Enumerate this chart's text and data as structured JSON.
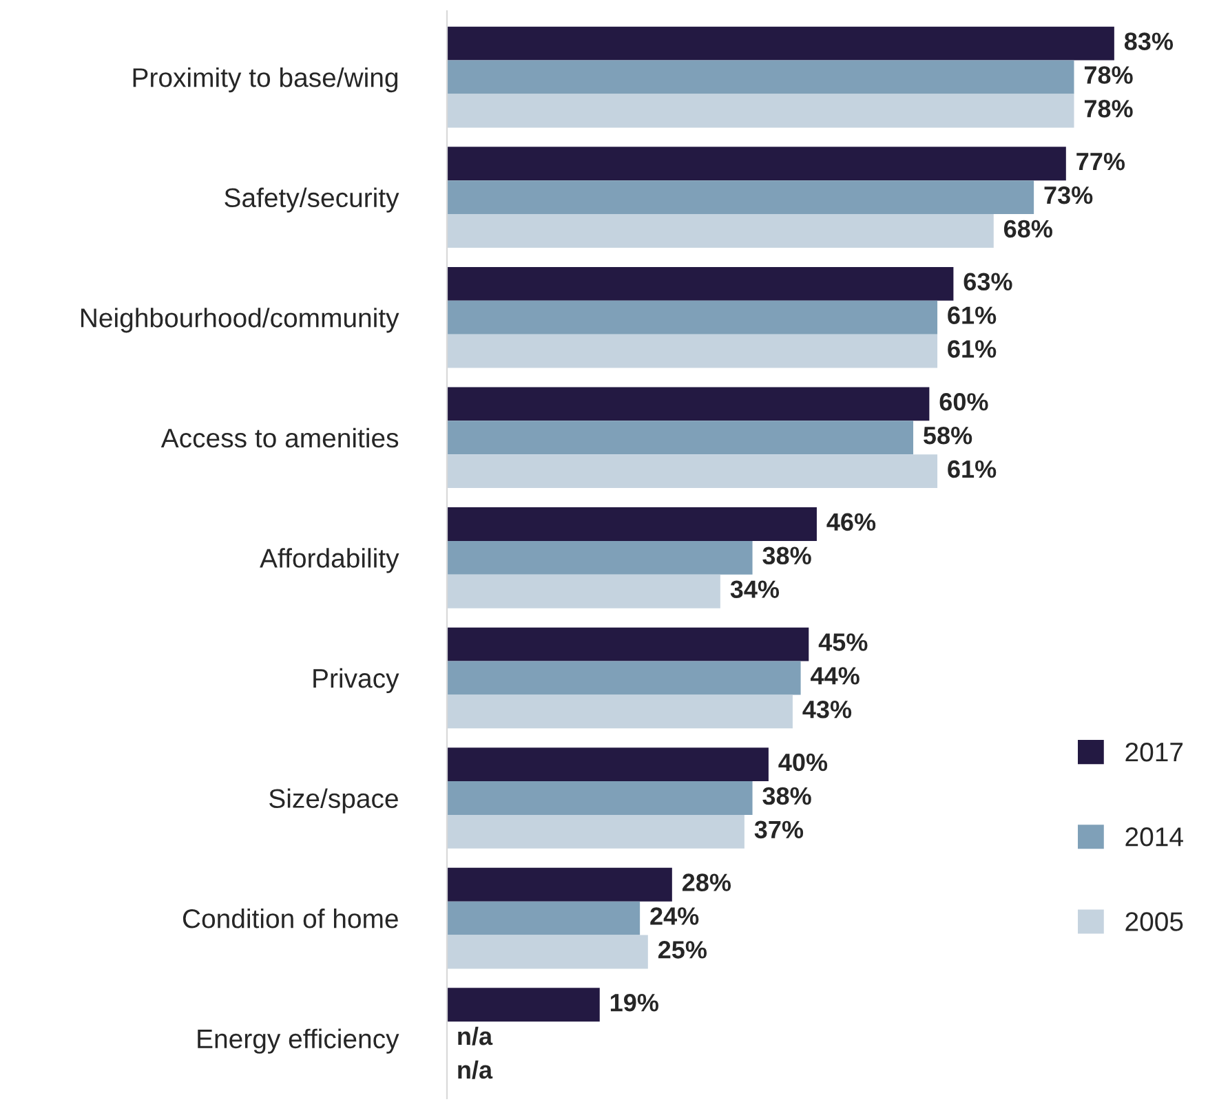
{
  "chart_data": {
    "type": "bar",
    "orientation": "horizontal",
    "categories": [
      "Proximity to base/wing",
      "Safety/security",
      "Neighbourhood/community",
      "Access to amenities",
      "Affordability",
      "Privacy",
      "Size/space",
      "Condition of home",
      "Energy efficiency"
    ],
    "series": [
      {
        "name": "2017",
        "color": "#231942",
        "values": [
          83,
          77,
          63,
          60,
          46,
          45,
          40,
          28,
          19
        ],
        "value_labels": [
          "83%",
          "77%",
          "63%",
          "60%",
          "46%",
          "45%",
          "40%",
          "28%",
          "19%"
        ]
      },
      {
        "name": "2014",
        "color": "#7fa0b8",
        "values": [
          78,
          73,
          61,
          58,
          38,
          44,
          38,
          24,
          null
        ],
        "value_labels": [
          "78%",
          "73%",
          "61%",
          "58%",
          "38%",
          "44%",
          "38%",
          "24%",
          "n/a"
        ]
      },
      {
        "name": "2005",
        "color": "#c5d3df",
        "values": [
          78,
          68,
          61,
          61,
          34,
          43,
          37,
          25,
          null
        ],
        "value_labels": [
          "78%",
          "68%",
          "61%",
          "61%",
          "34%",
          "43%",
          "37%",
          "25%",
          "n/a"
        ]
      }
    ],
    "tick_labels": "y",
    "grid": false,
    "legend": "bottom right"
  }
}
